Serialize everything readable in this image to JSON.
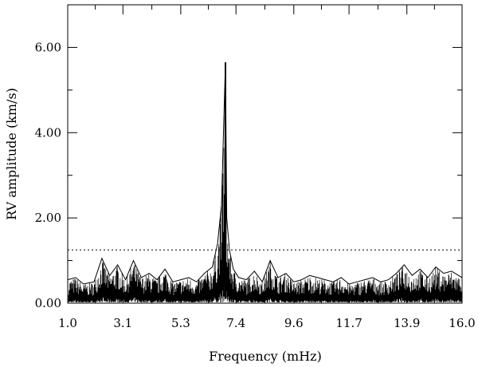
{
  "chart_data": {
    "type": "line",
    "xlabel": "Frequency (mHz)",
    "ylabel": "RV amplitude (km/s)",
    "xlim": [
      1.0,
      16.0
    ],
    "ylim": [
      0.0,
      7.0
    ],
    "x_ticks": [
      1.0,
      3.1,
      5.3,
      7.4,
      9.6,
      11.7,
      13.9,
      16.0
    ],
    "x_tick_labels": [
      "1.0",
      "3.1",
      "5.3",
      "7.4",
      "9.6",
      "11.7",
      "13.9",
      "16.0"
    ],
    "y_ticks": [
      0.0,
      2.0,
      4.0,
      6.0
    ],
    "y_tick_labels": [
      "0.00",
      "2.00",
      "4.00",
      "6.00"
    ],
    "grid": false,
    "threshold": {
      "value": 1.25,
      "style": "dotted"
    },
    "peak": {
      "x": 7.0,
      "y": 5.65
    },
    "series": [
      {
        "x": [
          1.0,
          1.3,
          1.6,
          2.0,
          2.3,
          2.6,
          2.9,
          3.2,
          3.5,
          3.8,
          4.1,
          4.4,
          4.7,
          5.0,
          5.3,
          5.6,
          5.9,
          6.2,
          6.5,
          6.7,
          6.85,
          6.95,
          7.0,
          7.05,
          7.15,
          7.3,
          7.5,
          7.8,
          8.1,
          8.4,
          8.7,
          9.0,
          9.3,
          9.6,
          9.9,
          10.2,
          10.5,
          10.8,
          11.1,
          11.4,
          11.7,
          12.0,
          12.3,
          12.6,
          12.9,
          13.2,
          13.5,
          13.8,
          14.1,
          14.4,
          14.7,
          15.0,
          15.3,
          15.6,
          16.0
        ],
        "values": [
          0.55,
          0.6,
          0.45,
          0.5,
          1.05,
          0.65,
          0.9,
          0.55,
          1.0,
          0.6,
          0.7,
          0.55,
          0.8,
          0.5,
          0.55,
          0.6,
          0.5,
          0.7,
          0.85,
          1.4,
          2.3,
          4.6,
          5.65,
          2.0,
          1.25,
          0.8,
          0.6,
          0.55,
          0.75,
          0.5,
          1.0,
          0.6,
          0.7,
          0.5,
          0.55,
          0.65,
          0.6,
          0.55,
          0.5,
          0.6,
          0.45,
          0.5,
          0.55,
          0.6,
          0.5,
          0.55,
          0.7,
          0.9,
          0.65,
          0.8,
          0.6,
          0.85,
          0.7,
          0.75,
          0.6
        ]
      }
    ]
  }
}
